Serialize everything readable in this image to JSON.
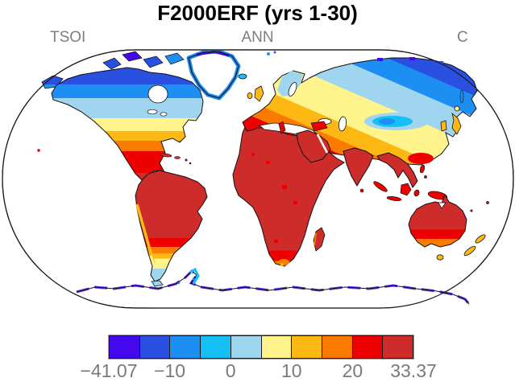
{
  "figure": {
    "title": "F2000ERF (yrs 1-30)",
    "left_label": "TSOI",
    "center_label": "ANN",
    "right_label": "C"
  },
  "colorbar": {
    "colors": [
      "#4408EE",
      "#2A50E2",
      "#1E8FF2",
      "#16BFF5",
      "#A0D5F0",
      "#FFF48C",
      "#FDB813",
      "#FB7A00",
      "#EE0000",
      "#CE2B2B"
    ],
    "ticks": [
      {
        "label": "−41.07",
        "pos": 0
      },
      {
        "label": "−10",
        "pos": 20
      },
      {
        "label": "0",
        "pos": 40
      },
      {
        "label": "10",
        "pos": 60
      },
      {
        "label": "20",
        "pos": 80
      },
      {
        "label": "33.37",
        "pos": 100
      }
    ]
  },
  "chart_data": {
    "type": "heatmap",
    "title": "F2000ERF (yrs 1-30)",
    "variable": "TSOI",
    "aggregation": "ANN",
    "units": "C",
    "projection": "robinson world map, white ocean, black coastlines",
    "value_range": [
      -41.07,
      33.37
    ],
    "colorbar_tick_labels": [
      "−41.07",
      "−10",
      "0",
      "10",
      "20",
      "33.37"
    ],
    "colorbar_colors": [
      "#4408EE",
      "#2A50E2",
      "#1E8FF2",
      "#16BFF5",
      "#A0D5F0",
      "#FFF48C",
      "#FDB813",
      "#FB7A00",
      "#EE0000",
      "#CE2B2B"
    ],
    "legend_position": "bottom",
    "regions": [
      {
        "name": "Sahara and tropical Africa",
        "approx_value_C": "above 20 (dark red)"
      },
      {
        "name": "Amazon and tropical South America",
        "approx_value_C": "above 20 (dark red)"
      },
      {
        "name": "Australia interior",
        "approx_value_C": "above 20 (dark red)"
      },
      {
        "name": "India, Arabia, Southeast Asia",
        "approx_value_C": "above 20 (dark red)"
      },
      {
        "name": "Southern US and Mexico",
        "approx_value_C": "15 to above 20 (orange-red)"
      },
      {
        "name": "Central US and Europe",
        "approx_value_C": "5 to 15 (yellow-amber)"
      },
      {
        "name": "Canada and Siberia",
        "approx_value_C": "-20 to -5 (blue / light blue)"
      },
      {
        "name": "Arctic islands and NE Siberia",
        "approx_value_C": "below -20 (dark blue / violet)"
      },
      {
        "name": "Tibetan Plateau",
        "approx_value_C": "-10 to 0 cold anomaly (cyan / light blue)"
      },
      {
        "name": "Antarctic coastal fringe",
        "approx_value_C": "about -41 to -20 (violet / blue)"
      },
      {
        "name": "Greenland and Antarctica interior",
        "approx_value_C": "no data (white)"
      },
      {
        "name": "Patagonia tip",
        "approx_value_C": "-5 to 5 (pale yellow / light blue)"
      },
      {
        "name": "New Zealand, Japan, UK",
        "approx_value_C": "5 to 15 (yellow / amber)"
      }
    ]
  }
}
